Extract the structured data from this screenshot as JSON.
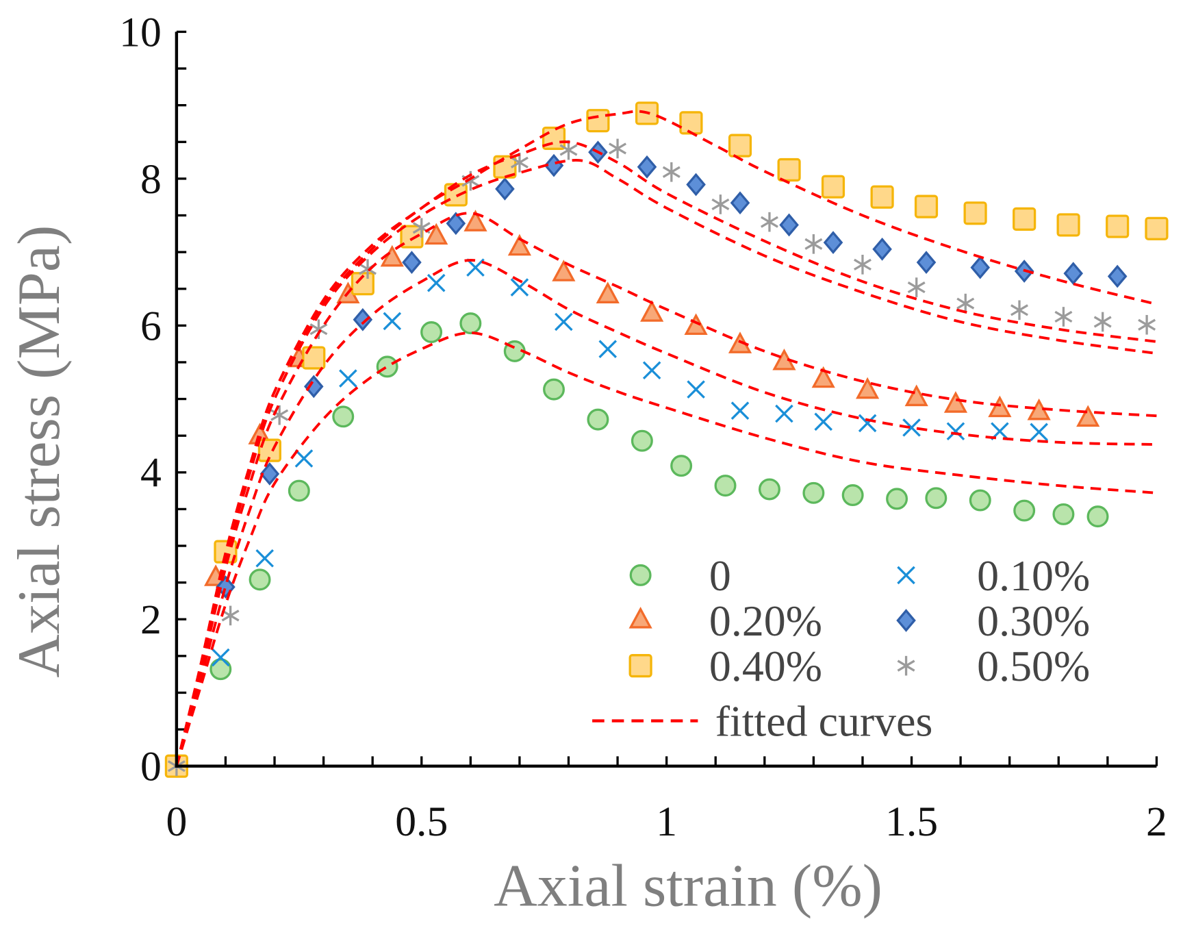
{
  "chart_data": {
    "type": "scatter",
    "title": "",
    "xlabel": "Axial strain (%)",
    "ylabel": "Axial stress (MPa)",
    "xlim": [
      0,
      2
    ],
    "ylim": [
      0,
      10
    ],
    "xticks": [
      0,
      0.5,
      1,
      1.5,
      2
    ],
    "xtick_labels": [
      "0",
      "0.5",
      "1",
      "1.5",
      "2"
    ],
    "yticks": [
      0,
      2,
      4,
      6,
      8,
      10
    ],
    "ytick_labels": [
      "0",
      "2",
      "4",
      "6",
      "8",
      "10"
    ],
    "x_minor_step": 0.1,
    "y_minor_step": 0.5,
    "grid": false,
    "legend_position": "lower-right",
    "fit_label": "fitted curves",
    "fit_color": "#ff0000",
    "axis_color": "#000000",
    "series": [
      {
        "name": "0",
        "marker": "circle",
        "fill": "#b9e4ab",
        "stroke": "#5cb85c",
        "x": [
          0,
          0.09,
          0.17,
          0.25,
          0.34,
          0.43,
          0.52,
          0.6,
          0.69,
          0.77,
          0.86,
          0.95,
          1.03,
          1.12,
          1.21,
          1.3,
          1.38,
          1.47,
          1.55,
          1.64,
          1.73,
          1.81,
          1.88
        ],
        "y": [
          0,
          1.32,
          2.54,
          3.75,
          4.76,
          5.44,
          5.91,
          6.03,
          5.65,
          5.13,
          4.72,
          4.43,
          4.09,
          3.82,
          3.77,
          3.72,
          3.69,
          3.64,
          3.65,
          3.62,
          3.48,
          3.43,
          3.4
        ],
        "fit": {
          "x": [
            0,
            0.05,
            0.1,
            0.15,
            0.2,
            0.3,
            0.4,
            0.5,
            0.6,
            0.7,
            0.8,
            0.9,
            1.0,
            1.2,
            1.4,
            1.6,
            1.8,
            2.0
          ],
          "y": [
            0,
            1.1,
            2.2,
            3.1,
            3.85,
            4.73,
            5.31,
            5.68,
            5.9,
            5.67,
            5.36,
            5.1,
            4.88,
            4.47,
            4.14,
            3.96,
            3.82,
            3.72
          ]
        }
      },
      {
        "name": "0.10%",
        "marker": "x",
        "fill": "none",
        "stroke": "#1a8fd8",
        "x": [
          0,
          0.09,
          0.18,
          0.26,
          0.35,
          0.44,
          0.53,
          0.61,
          0.7,
          0.79,
          0.88,
          0.97,
          1.06,
          1.15,
          1.24,
          1.32,
          1.41,
          1.5,
          1.59,
          1.68,
          1.76
        ],
        "y": [
          0,
          1.48,
          2.83,
          4.19,
          5.28,
          6.06,
          6.58,
          6.79,
          6.52,
          6.05,
          5.68,
          5.39,
          5.13,
          4.84,
          4.8,
          4.69,
          4.67,
          4.61,
          4.56,
          4.56,
          4.55
        ],
        "fit": {
          "x": [
            0,
            0.05,
            0.1,
            0.15,
            0.2,
            0.3,
            0.4,
            0.5,
            0.6,
            0.7,
            0.8,
            0.9,
            1.0,
            1.2,
            1.4,
            1.6,
            1.8,
            2.0
          ],
          "y": [
            0,
            1.2,
            2.45,
            3.5,
            4.35,
            5.45,
            6.15,
            6.6,
            6.89,
            6.61,
            6.22,
            5.91,
            5.62,
            5.09,
            4.73,
            4.52,
            4.41,
            4.38
          ]
        }
      },
      {
        "name": "0.20%",
        "marker": "triangle",
        "fill": "#f8a878",
        "stroke": "#f26b2a",
        "x": [
          0,
          0.08,
          0.17,
          0.25,
          0.35,
          0.44,
          0.53,
          0.61,
          0.7,
          0.79,
          0.88,
          0.97,
          1.06,
          1.15,
          1.24,
          1.32,
          1.41,
          1.51,
          1.59,
          1.68,
          1.76,
          1.86
        ],
        "y": [
          0,
          2.56,
          4.49,
          5.54,
          6.41,
          6.91,
          7.21,
          7.39,
          7.06,
          6.71,
          6.41,
          6.16,
          5.98,
          5.73,
          5.5,
          5.26,
          5.11,
          5.01,
          4.92,
          4.86,
          4.82,
          4.73
        ],
        "fit": {
          "x": [
            0,
            0.05,
            0.1,
            0.15,
            0.2,
            0.3,
            0.4,
            0.5,
            0.6,
            0.7,
            0.8,
            0.9,
            1.0,
            1.2,
            1.4,
            1.6,
            1.8,
            2.0
          ],
          "y": [
            0,
            1.3,
            2.7,
            3.85,
            4.8,
            6.0,
            6.8,
            7.25,
            7.53,
            7.18,
            6.83,
            6.53,
            6.22,
            5.65,
            5.24,
            4.98,
            4.85,
            4.77
          ]
        }
      },
      {
        "name": "0.30%",
        "marker": "diamond",
        "fill": "#5d8fd8",
        "stroke": "#2f5ea8",
        "x": [
          0,
          0.1,
          0.19,
          0.28,
          0.38,
          0.48,
          0.57,
          0.67,
          0.77,
          0.86,
          0.96,
          1.06,
          1.15,
          1.25,
          1.34,
          1.44,
          1.53,
          1.64,
          1.73,
          1.83,
          1.92
        ],
        "y": [
          0,
          2.44,
          3.98,
          5.17,
          6.08,
          6.86,
          7.39,
          7.86,
          8.18,
          8.36,
          8.16,
          7.92,
          7.67,
          7.37,
          7.13,
          7.04,
          6.86,
          6.79,
          6.74,
          6.71,
          6.67
        ],
        "fit": {
          "x": [
            0,
            0.05,
            0.1,
            0.15,
            0.2,
            0.3,
            0.4,
            0.5,
            0.6,
            0.7,
            0.82,
            0.9,
            1.0,
            1.2,
            1.4,
            1.6,
            1.8,
            2.0
          ],
          "y": [
            0,
            1.35,
            2.8,
            4.0,
            5.0,
            6.25,
            7.0,
            7.5,
            7.85,
            8.08,
            8.25,
            8.0,
            7.6,
            6.95,
            6.45,
            6.05,
            5.8,
            5.62
          ]
        }
      },
      {
        "name": "0.40%",
        "marker": "square",
        "fill": "#ffd88a",
        "stroke": "#f5b50a",
        "x": [
          0,
          0.1,
          0.19,
          0.28,
          0.38,
          0.48,
          0.57,
          0.67,
          0.77,
          0.86,
          0.96,
          1.05,
          1.15,
          1.25,
          1.34,
          1.44,
          1.53,
          1.63,
          1.73,
          1.82,
          1.92,
          2.0
        ],
        "y": [
          0,
          2.92,
          4.3,
          5.56,
          6.57,
          7.21,
          7.78,
          8.16,
          8.55,
          8.79,
          8.89,
          8.76,
          8.45,
          8.12,
          7.89,
          7.75,
          7.62,
          7.53,
          7.45,
          7.37,
          7.35,
          7.32
        ],
        "fit": {
          "x": [
            0,
            0.05,
            0.1,
            0.15,
            0.2,
            0.3,
            0.4,
            0.5,
            0.6,
            0.7,
            0.8,
            0.9,
            0.97,
            1.1,
            1.2,
            1.4,
            1.6,
            1.8,
            2.0
          ],
          "y": [
            0,
            1.4,
            2.9,
            4.1,
            5.1,
            6.3,
            7.05,
            7.6,
            8.0,
            8.4,
            8.75,
            8.88,
            8.88,
            8.45,
            8.1,
            7.5,
            7.02,
            6.62,
            6.29
          ]
        }
      },
      {
        "name": "0.50%",
        "marker": "asterisk",
        "fill": "none",
        "stroke": "#9b9b9b",
        "x": [
          0,
          0.11,
          0.21,
          0.29,
          0.39,
          0.5,
          0.6,
          0.7,
          0.8,
          0.9,
          1.01,
          1.11,
          1.21,
          1.3,
          1.4,
          1.51,
          1.61,
          1.72,
          1.81,
          1.89,
          1.98
        ],
        "y": [
          0,
          2.05,
          4.78,
          5.95,
          6.77,
          7.33,
          7.97,
          8.22,
          8.39,
          8.41,
          8.09,
          7.65,
          7.41,
          7.11,
          6.83,
          6.52,
          6.3,
          6.21,
          6.12,
          6.05,
          6.01
        ],
        "fit": {
          "x": [
            0,
            0.05,
            0.1,
            0.15,
            0.2,
            0.3,
            0.4,
            0.5,
            0.6,
            0.7,
            0.8,
            0.9,
            1.0,
            1.2,
            1.4,
            1.6,
            1.8,
            2.0
          ],
          "y": [
            0,
            1.4,
            2.9,
            4.1,
            5.1,
            6.35,
            7.1,
            7.6,
            8.05,
            8.33,
            8.5,
            8.22,
            7.8,
            7.15,
            6.6,
            6.2,
            5.95,
            5.78
          ]
        }
      }
    ]
  }
}
